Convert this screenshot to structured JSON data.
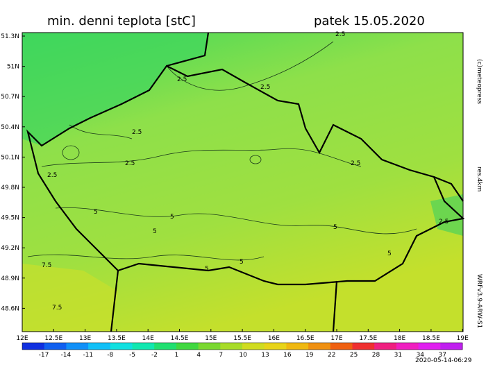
{
  "header": {
    "title": "min. denni teplota [stC]",
    "date": "patek 15.05.2020"
  },
  "axes": {
    "latitude_labels": [
      "51.3N",
      "51N",
      "50.7N",
      "50.4N",
      "50.1N",
      "49.8N",
      "49.5N",
      "49.2N",
      "48.9N",
      "48.6N"
    ],
    "longitude_labels": [
      "12E",
      "12.5E",
      "13E",
      "13.5E",
      "14E",
      "14.5E",
      "15E",
      "15.5E",
      "16E",
      "16.5E",
      "17E",
      "17.5E",
      "18E",
      "18.5E",
      "19E"
    ]
  },
  "contour_labels": [
    "2.5",
    "2.5",
    "2.5",
    "2.5",
    "2.5",
    "2.5",
    "2.5",
    "2.5",
    "5",
    "5",
    "5",
    "5",
    "5",
    "5",
    "5",
    "7.5",
    "7.5"
  ],
  "colorbar": {
    "labels": [
      "-17",
      "-14",
      "-11",
      "-8",
      "-5",
      "-2",
      "1",
      "4",
      "7",
      "10",
      "13",
      "16",
      "19",
      "22",
      "25",
      "28",
      "31",
      "34",
      "37"
    ]
  },
  "side": {
    "copyright": "(c)meteopress",
    "resolution": "res.4km",
    "model": "WRFv3.9-ARW-S1"
  },
  "footer": {
    "timestamp": "2020-05-14-06:29"
  }
}
